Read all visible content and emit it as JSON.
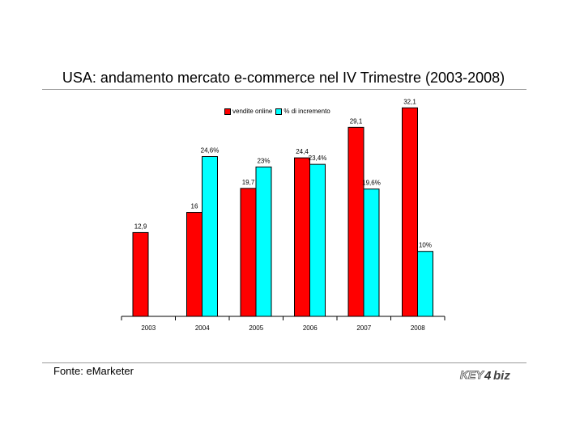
{
  "title": "USA: andamento mercato e-commerce nel IV Trimestre (2003-2008)",
  "source": "Fonte: eMarketer",
  "logo_text": "KEY4biz",
  "colors": {
    "vendite": "#ff0000",
    "incremento": "#00ffff",
    "axis": "#000000"
  },
  "chart_data": {
    "type": "bar",
    "title": "USA: andamento mercato e-commerce nel IV Trimestre (2003-2008)",
    "categories": [
      "2003",
      "2004",
      "2005",
      "2006",
      "2007",
      "2008"
    ],
    "series": [
      {
        "name": "vendite online",
        "values": [
          12.9,
          16,
          19.7,
          24.4,
          29.1,
          32.1
        ],
        "labels": [
          "12,9",
          "16",
          "19,7",
          "24,4",
          "29,1",
          "32,1"
        ]
      },
      {
        "name": "% di incremento",
        "values": [
          null,
          24.6,
          23,
          23.4,
          19.6,
          10
        ],
        "labels": [
          "",
          "24,6%",
          "23%",
          "23,4%",
          "19,6%",
          "10%"
        ]
      }
    ],
    "legend": "top-center",
    "grid": false,
    "ylim": [
      0,
      35
    ]
  }
}
